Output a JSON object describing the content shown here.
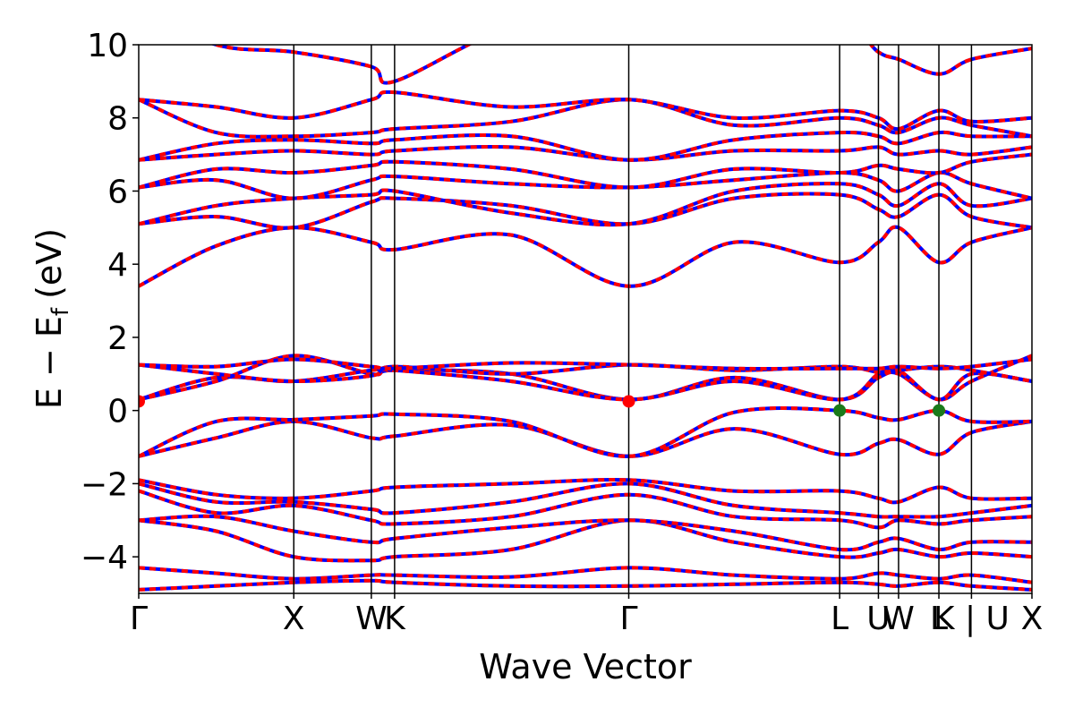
{
  "chart_data": {
    "type": "line",
    "title": "",
    "xlabel": "Wave Vector",
    "ylabel_parts": {
      "main": "E − E",
      "sub": "f",
      "unit": "(eV)"
    },
    "ylim": [
      -5,
      10
    ],
    "yticks": [
      -4,
      -2,
      0,
      2,
      4,
      6,
      8,
      10
    ],
    "ytick_labels": [
      "−4",
      "−2",
      "0",
      "2",
      "4",
      "6",
      "8",
      "10"
    ],
    "xlim": [
      0,
      5.76
    ],
    "high_symmetry_points": [
      {
        "label": "Γ",
        "x": 0.0
      },
      {
        "label": "X",
        "x": 1.0
      },
      {
        "label": "W",
        "x": 1.5
      },
      {
        "label": "K",
        "x": 1.65
      },
      {
        "label": "Γ",
        "x": 3.16
      },
      {
        "label": "L",
        "x": 4.52
      },
      {
        "label": "U",
        "x": 4.77
      },
      {
        "label": "W",
        "x": 4.9
      },
      {
        "label": "L",
        "x": 5.16
      },
      {
        "label": "K | U",
        "x": 5.37
      },
      {
        "label": "X",
        "x": 5.76
      }
    ],
    "grid": false,
    "legend": "none",
    "colors": {
      "band_primary": "#ff0000",
      "band_secondary": "#0000ff",
      "vbm_marker": "#1a7a1a",
      "cbm_marker": "#ff0000"
    },
    "band_knots_x": [
      0.0,
      0.5,
      1.0,
      1.5,
      1.65,
      2.4,
      3.16,
      3.84,
      4.52,
      4.77,
      4.9,
      5.16,
      5.37,
      5.76
    ],
    "series": [
      {
        "values": [
          -4.9,
          -4.8,
          -4.7,
          -4.65,
          -4.7,
          -4.8,
          -4.8,
          -4.75,
          -4.7,
          -4.75,
          -4.8,
          -4.7,
          -4.8,
          -4.9
        ]
      },
      {
        "values": [
          -4.3,
          -4.45,
          -4.6,
          -4.5,
          -4.5,
          -4.55,
          -4.3,
          -4.5,
          -4.6,
          -4.45,
          -4.5,
          -4.6,
          -4.5,
          -4.7
        ]
      },
      {
        "values": [
          -3.0,
          -3.3,
          -4.0,
          -4.1,
          -4.0,
          -3.8,
          -3.0,
          -3.6,
          -4.0,
          -3.9,
          -3.8,
          -4.0,
          -3.9,
          -4.0
        ]
      },
      {
        "values": [
          -3.0,
          -2.9,
          -3.3,
          -3.6,
          -3.5,
          -3.2,
          -3.0,
          -3.3,
          -3.8,
          -3.6,
          -3.5,
          -3.8,
          -3.6,
          -3.6
        ]
      },
      {
        "values": [
          -2.2,
          -2.8,
          -2.6,
          -3.0,
          -3.1,
          -2.9,
          -2.3,
          -2.9,
          -3.0,
          -3.2,
          -3.0,
          -3.1,
          -3.0,
          -2.9
        ]
      },
      {
        "values": [
          -2.0,
          -2.5,
          -2.5,
          -2.7,
          -2.8,
          -2.5,
          -2.0,
          -2.6,
          -2.8,
          -2.9,
          -2.9,
          -2.9,
          -2.8,
          -2.6
        ]
      },
      {
        "values": [
          -1.9,
          -2.3,
          -2.4,
          -2.2,
          -2.1,
          -2.0,
          -1.9,
          -2.2,
          -2.2,
          -2.4,
          -2.5,
          -2.1,
          -2.4,
          -2.4
        ]
      },
      {
        "values": [
          -1.25,
          -0.75,
          -0.3,
          -0.75,
          -0.7,
          -0.4,
          -1.25,
          -0.5,
          -1.2,
          -0.9,
          -0.8,
          -1.2,
          -0.6,
          -0.3
        ]
      },
      {
        "values": [
          -1.25,
          -0.3,
          -0.25,
          -0.15,
          -0.1,
          -0.3,
          -1.25,
          -0.05,
          0.0,
          -0.2,
          -0.25,
          0.0,
          -0.3,
          -0.3
        ]
      },
      {
        "values": [
          0.3,
          0.8,
          1.5,
          1.0,
          1.1,
          1.0,
          0.3,
          0.9,
          0.3,
          0.9,
          1.0,
          0.3,
          0.8,
          1.5
        ]
      },
      {
        "values": [
          0.3,
          0.9,
          0.8,
          1.1,
          1.1,
          0.8,
          0.3,
          0.8,
          0.3,
          1.0,
          1.1,
          0.3,
          1.0,
          0.8
        ]
      },
      {
        "values": [
          1.25,
          1.0,
          0.8,
          0.95,
          1.2,
          1.0,
          1.25,
          1.1,
          1.2,
          1.05,
          1.1,
          1.2,
          1.1,
          0.8
        ]
      },
      {
        "values": [
          1.25,
          1.2,
          1.4,
          1.2,
          1.15,
          1.3,
          1.25,
          1.15,
          1.15,
          1.15,
          1.2,
          1.15,
          1.2,
          1.4
        ]
      },
      {
        "values": [
          3.4,
          4.5,
          5.0,
          4.6,
          4.4,
          4.8,
          3.4,
          4.6,
          4.05,
          4.6,
          5.0,
          4.05,
          4.6,
          5.0
        ]
      },
      {
        "values": [
          5.1,
          5.3,
          5.0,
          5.7,
          5.8,
          5.6,
          5.1,
          5.8,
          5.9,
          5.5,
          5.3,
          5.9,
          5.3,
          5.0
        ]
      },
      {
        "values": [
          5.1,
          5.6,
          5.8,
          5.9,
          6.0,
          5.4,
          5.1,
          6.0,
          6.2,
          5.9,
          5.6,
          6.2,
          5.6,
          5.8
        ]
      },
      {
        "values": [
          6.1,
          6.3,
          5.8,
          6.3,
          6.4,
          6.2,
          6.1,
          6.3,
          6.5,
          6.3,
          6.0,
          6.5,
          6.2,
          5.8
        ]
      },
      {
        "values": [
          6.1,
          6.6,
          6.5,
          6.7,
          6.8,
          6.6,
          6.1,
          6.6,
          6.5,
          6.7,
          6.6,
          6.5,
          6.8,
          7.0
        ]
      },
      {
        "values": [
          6.85,
          7.0,
          7.1,
          7.0,
          7.1,
          7.2,
          6.85,
          7.1,
          7.1,
          7.2,
          7.0,
          7.1,
          7.0,
          7.2
        ]
      },
      {
        "values": [
          6.85,
          7.3,
          7.4,
          7.3,
          7.4,
          7.5,
          6.85,
          7.4,
          7.6,
          7.5,
          7.3,
          7.6,
          7.5,
          7.5
        ]
      },
      {
        "values": [
          8.5,
          7.6,
          7.5,
          7.6,
          7.7,
          7.9,
          8.5,
          7.8,
          8.0,
          7.8,
          7.6,
          8.0,
          7.8,
          7.5
        ]
      },
      {
        "values": [
          8.5,
          8.3,
          8.0,
          8.5,
          8.7,
          8.3,
          8.5,
          8.0,
          8.2,
          8.0,
          7.7,
          8.2,
          7.9,
          8.0
        ]
      },
      {
        "values": [
          11.0,
          10.0,
          9.8,
          9.4,
          9.0,
          10.5,
          11.0,
          10.5,
          10.6,
          9.8,
          9.6,
          9.2,
          9.6,
          9.9
        ]
      }
    ],
    "extrema_markers": [
      {
        "kind": "cbm",
        "x": 0.0,
        "y": 0.25
      },
      {
        "kind": "cbm",
        "x": 3.16,
        "y": 0.25
      },
      {
        "kind": "vbm",
        "x": 4.52,
        "y": 0.0
      },
      {
        "kind": "vbm",
        "x": 5.16,
        "y": 0.0
      }
    ]
  }
}
